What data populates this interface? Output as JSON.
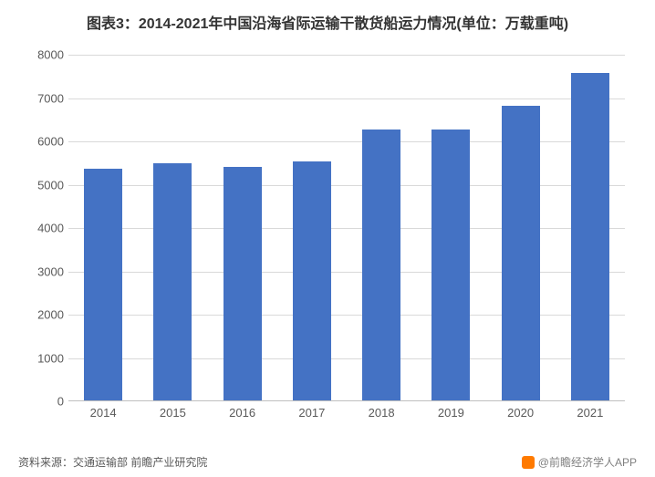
{
  "title": "图表3：2014-2021年中国沿海省际运输干散货船运力情况(单位：万载重吨)",
  "title_fontsize": 16,
  "title_color": "#333333",
  "chart": {
    "type": "bar",
    "categories": [
      "2014",
      "2015",
      "2016",
      "2017",
      "2018",
      "2019",
      "2020",
      "2021"
    ],
    "values": [
      5350,
      5480,
      5380,
      5520,
      6250,
      6250,
      6800,
      7550
    ],
    "bar_color": "#4472c4",
    "bar_width_ratio": 0.55,
    "ylim": [
      0,
      8000
    ],
    "ytick_step": 1000,
    "yticks": [
      0,
      1000,
      2000,
      3000,
      4000,
      5000,
      6000,
      7000,
      8000
    ],
    "grid_color": "#d9d9d9",
    "axis_color": "#bfbfbf",
    "axis_label_color": "#595959",
    "axis_label_fontsize": 13,
    "background_color": "#ffffff"
  },
  "footer": {
    "source": "资料来源：交通运输部 前瞻产业研究院",
    "source_color": "#595959",
    "source_fontsize": 12,
    "watermark": "@前瞻经济学人APP",
    "watermark_color": "#808080",
    "watermark_fontsize": 12,
    "watermark_icon_color": "#ff7a00"
  }
}
